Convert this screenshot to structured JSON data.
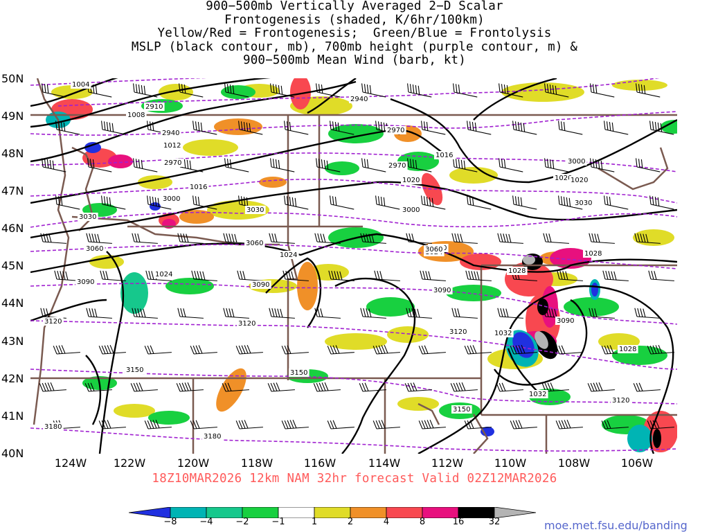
{
  "title": {
    "lines": [
      "900−500mb Vertically Averaged 2−D Scalar",
      "Frontogenesis (shaded, K/6hr/100km)",
      "Yellow/Red = Frontogenesis;  Green/Blue = Frontolysis",
      "MSLP (black contour, mb), 700mb height (purple contour, m) &",
      "900−500mb Mean Wind (barb, kt)"
    ]
  },
  "map": {
    "lat_labels": [
      "50N",
      "49N",
      "48N",
      "47N",
      "46N",
      "45N",
      "44N",
      "43N",
      "42N",
      "41N",
      "40N"
    ],
    "lon_labels": [
      "124W",
      "122W",
      "120W",
      "118W",
      "116W",
      "114W",
      "112W",
      "110W",
      "108W",
      "106W"
    ],
    "mslp_labels": [
      "1004",
      "1008",
      "1012",
      "1016",
      "1016",
      "1020",
      "1020",
      "1020",
      "1024",
      "1024",
      "1024",
      "1028",
      "1028",
      "1028",
      "1032",
      "1032"
    ],
    "height_labels": [
      "2910",
      "2940",
      "2940",
      "2970",
      "2970",
      "2970",
      "3000",
      "3000",
      "3000",
      "3030",
      "3030",
      "3030",
      "3060",
      "3060",
      "3060",
      "3060",
      "3090",
      "3090",
      "3090",
      "3090",
      "3120",
      "3120",
      "3120",
      "3120",
      "3150",
      "3150",
      "3150",
      "3180",
      "3180"
    ]
  },
  "run_info": "18Z10MAR2026 12km NAM 32hr forecast Valid 02Z12MAR2026",
  "colorbar": {
    "ticks": [
      "−8",
      "−4",
      "−2",
      "−1",
      "1",
      "2",
      "4",
      "8",
      "16",
      "32"
    ],
    "colors": [
      "#2030e0",
      "#00b4b4",
      "#16c88c",
      "#18d040",
      "#ffffff",
      "#e0dc28",
      "#f09028",
      "#f84850",
      "#e8107e",
      "#000000",
      "#b4b4b4"
    ]
  },
  "credit": "moe.met.fsu.edu/banding"
}
